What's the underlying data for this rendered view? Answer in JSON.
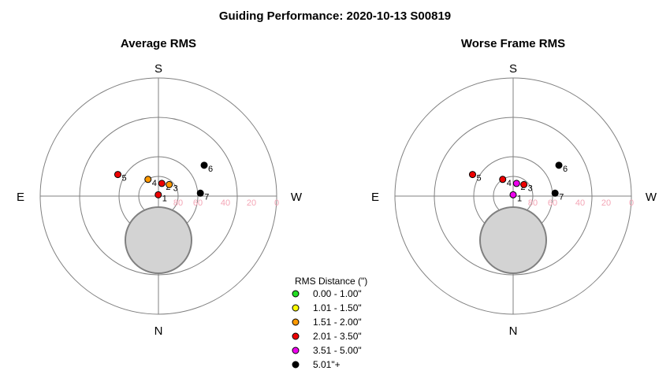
{
  "title": "Guiding Performance: 2020-10-13 S00819",
  "colors": {
    "grid": "#808080",
    "moon_fill": "#d3d3d3",
    "moon_stroke": "#808080",
    "alt_tick": "#f4a6b6"
  },
  "legend": {
    "title": "RMS Distance (\")",
    "items": [
      {
        "label": "0.00 - 1.00\"",
        "color": "#22dd22"
      },
      {
        "label": "1.01 - 1.50\"",
        "color": "#ffff00"
      },
      {
        "label": "1.51 - 2.00\"",
        "color": "#ff9900"
      },
      {
        "label": "2.01 - 3.50\"",
        "color": "#ee0000"
      },
      {
        "label": "3.51 - 5.00\"",
        "color": "#ee00ee"
      },
      {
        "label": "5.01\"+",
        "color": "#000000"
      }
    ]
  },
  "chart_data": [
    {
      "type": "scatter",
      "projection": "polar-sky",
      "title": "Average RMS",
      "compass": {
        "top": "S",
        "bottom": "N",
        "left": "E",
        "right": "W"
      },
      "altitude_ticks": [
        "80",
        "60",
        "40",
        "20",
        "0"
      ],
      "rings_altitude": [
        80,
        60,
        40,
        20,
        0
      ],
      "points": [
        {
          "label": "1",
          "az": 173,
          "alt": 89,
          "color": "#ee0000"
        },
        {
          "label": "2",
          "az": 195,
          "alt": 80,
          "color": "#ee0000"
        },
        {
          "label": "3",
          "az": 223,
          "alt": 78,
          "color": "#ff9900"
        },
        {
          "label": "4",
          "az": 148,
          "alt": 75,
          "color": "#ff9900"
        },
        {
          "label": "5",
          "az": 118,
          "alt": 55,
          "color": "#ee0000"
        },
        {
          "label": "6",
          "az": 236,
          "alt": 48,
          "color": "#000000"
        },
        {
          "label": "7",
          "az": 266,
          "alt": 58,
          "color": "#000000"
        }
      ]
    },
    {
      "type": "scatter",
      "projection": "polar-sky",
      "title": "Worse Frame RMS",
      "compass": {
        "top": "S",
        "bottom": "N",
        "left": "E",
        "right": "W"
      },
      "altitude_ticks": [
        "80",
        "60",
        "40",
        "20",
        "0"
      ],
      "rings_altitude": [
        80,
        60,
        40,
        20,
        0
      ],
      "points": [
        {
          "label": "1",
          "az": 180,
          "alt": 89,
          "color": "#ee00ee"
        },
        {
          "label": "2",
          "az": 195,
          "alt": 80,
          "color": "#ee00ee"
        },
        {
          "label": "3",
          "az": 223,
          "alt": 78,
          "color": "#ee0000"
        },
        {
          "label": "4",
          "az": 148,
          "alt": 75,
          "color": "#ee0000"
        },
        {
          "label": "5",
          "az": 118,
          "alt": 55,
          "color": "#ee0000"
        },
        {
          "label": "6",
          "az": 236,
          "alt": 48,
          "color": "#000000"
        },
        {
          "label": "7",
          "az": 266,
          "alt": 58,
          "color": "#000000"
        }
      ]
    }
  ]
}
